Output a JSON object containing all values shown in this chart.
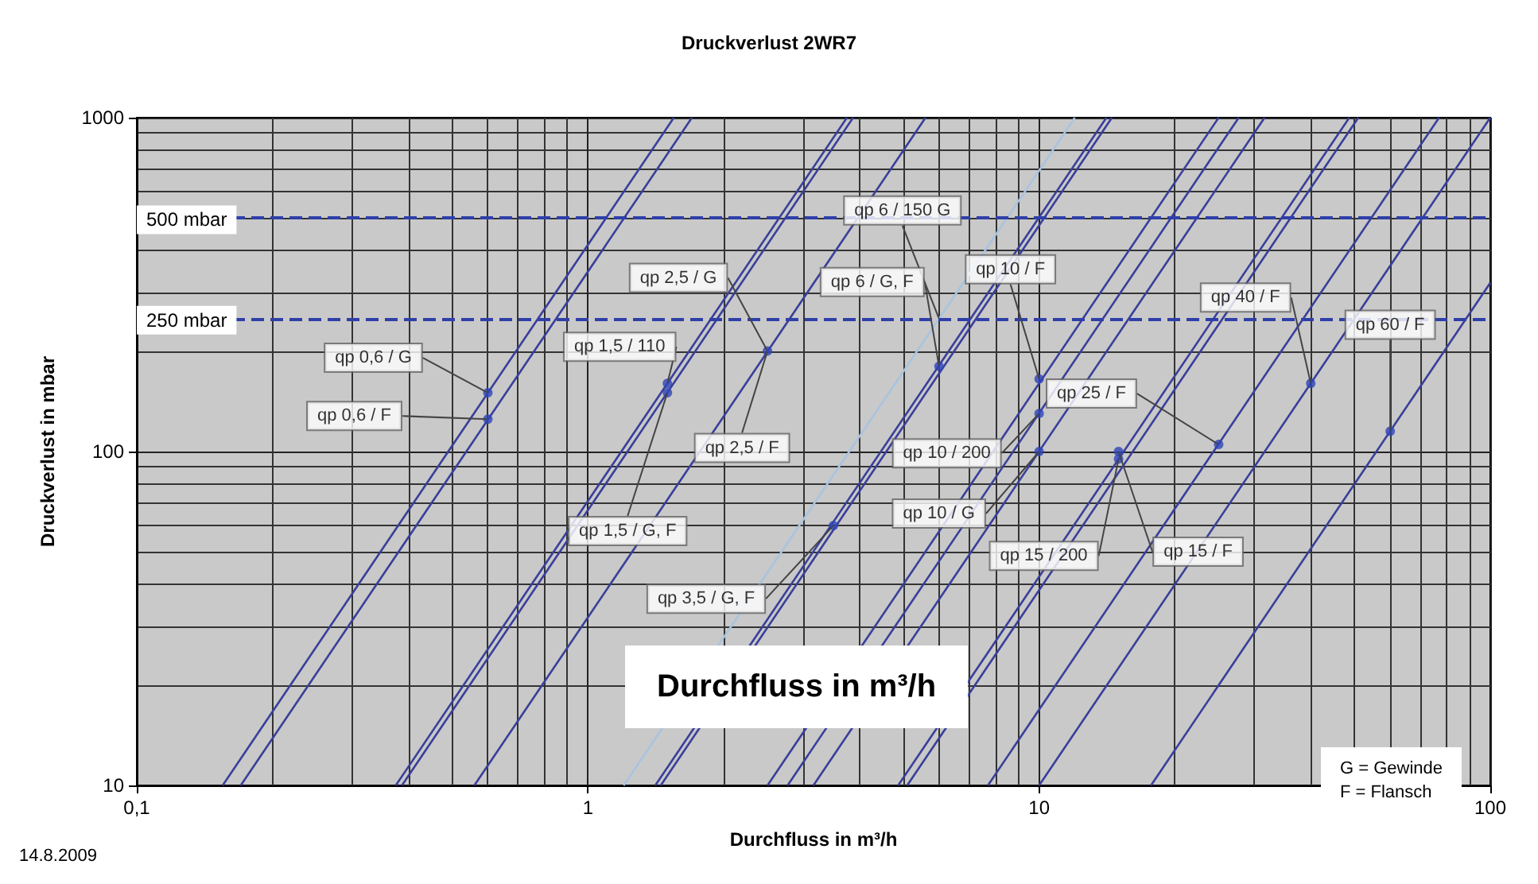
{
  "chart_data": {
    "type": "line",
    "title": "Druckverlust 2WR7",
    "xlabel": "Durchfluss in m³/h",
    "ylabel": "Druckverlust in mbar",
    "log": "xy",
    "grid": true,
    "marker": "none",
    "line_style": "solid",
    "xlim": [
      0.1,
      100
    ],
    "ylim": [
      10,
      1000
    ],
    "xticks": [
      {
        "value": 0.1,
        "label": "0,1"
      },
      1,
      10,
      100
    ],
    "yticks": [
      10,
      100,
      1000
    ],
    "series": [
      {
        "color": "#3a3f9a",
        "x": [
          0.155,
          1.55
        ],
        "values": [
          10,
          1000
        ]
      },
      {
        "color": "#3a3f9a",
        "x": [
          0.17,
          1.7
        ],
        "values": [
          10,
          1000
        ]
      },
      {
        "color": "#3a3f9a",
        "x": [
          0.375,
          3.75
        ],
        "values": [
          10,
          1000
        ]
      },
      {
        "color": "#3a3f9a",
        "x": [
          0.387,
          3.87
        ],
        "values": [
          10,
          1000
        ]
      },
      {
        "color": "#3a3f9a",
        "x": [
          0.56,
          5.6
        ],
        "values": [
          10,
          1000
        ]
      },
      {
        "color": "#a9c3e0",
        "x": [
          1.2,
          12
        ],
        "values": [
          10,
          1000
        ]
      },
      {
        "color": "#3a3f9a",
        "x": [
          1.41,
          14.1
        ],
        "values": [
          10,
          1000
        ]
      },
      {
        "color": "#3a3f9a",
        "x": [
          1.45,
          14.5
        ],
        "values": [
          10,
          1000
        ]
      },
      {
        "color": "#3a3f9a",
        "x": [
          2.5,
          25
        ],
        "values": [
          10,
          1000
        ]
      },
      {
        "color": "#3a3f9a",
        "x": [
          2.77,
          27.7
        ],
        "values": [
          10,
          1000
        ]
      },
      {
        "color": "#3a3f9a",
        "x": [
          3.16,
          31.6
        ],
        "values": [
          10,
          1000
        ]
      },
      {
        "color": "#3a3f9a",
        "x": [
          4.87,
          48.7
        ],
        "values": [
          10,
          1000
        ]
      },
      {
        "color": "#3a3f9a",
        "x": [
          5.1,
          51
        ],
        "values": [
          10,
          1000
        ]
      },
      {
        "color": "#3a3f9a",
        "x": [
          7.7,
          77
        ],
        "values": [
          10,
          1000
        ]
      },
      {
        "color": "#3a3f9a",
        "x": [
          10,
          100
        ],
        "values": [
          10,
          1000
        ]
      },
      {
        "color": "#3a3f9a",
        "x": [
          17.7,
          100
        ],
        "values": [
          10,
          320
        ]
      },
      {
        "type": "scatter",
        "marker": "circle",
        "color": "#2f45b8",
        "x": [
          0.6,
          0.6,
          1.5,
          1.5,
          2.5,
          3.5,
          6,
          10,
          10,
          10,
          15,
          15,
          25,
          40,
          60
        ],
        "values": [
          150,
          125,
          160,
          150,
          200,
          60,
          180,
          165,
          130,
          100,
          95,
          100,
          105,
          160,
          115
        ]
      }
    ],
    "ref_lines": [
      {
        "axis": "y",
        "value": 500,
        "label": "500 mbar",
        "color": "#2f3fa8",
        "line_style": "dashed"
      },
      {
        "axis": "y",
        "value": 250,
        "label": "250 mbar",
        "color": "#2f3fa8",
        "line_style": "dashed"
      }
    ],
    "annotations": [
      {
        "text": "qp 0,6 / G",
        "x": 0.6,
        "y": 150
      },
      {
        "text": "qp 0,6 / F",
        "x": 0.6,
        "y": 125
      },
      {
        "text": "qp 1,5 / 110",
        "x": 1.5,
        "y": 160
      },
      {
        "text": "qp 1,5 / G, F",
        "x": 1.5,
        "y": 150
      },
      {
        "text": "qp 2,5 / G",
        "x": 2.5,
        "y": 200
      },
      {
        "text": "qp 2,5 / F",
        "x": 2.5,
        "y": 200
      },
      {
        "text": "qp 3,5 / G, F",
        "x": 3.5,
        "y": 60
      },
      {
        "text": "qp 6 / G, F",
        "x": 6,
        "y": 180
      },
      {
        "text": "qp 6 / 150 G",
        "x": 6,
        "y": 250
      },
      {
        "text": "qp 10 / F",
        "x": 10,
        "y": 165
      },
      {
        "text": "qp 10 / 200",
        "x": 10,
        "y": 130
      },
      {
        "text": "qp 10 / G",
        "x": 10,
        "y": 100
      },
      {
        "text": "qp 15 / 200",
        "x": 15,
        "y": 95
      },
      {
        "text": "qp 15 / F",
        "x": 15,
        "y": 100
      },
      {
        "text": "qp 25 / F",
        "x": 25,
        "y": 105
      },
      {
        "text": "qp 40 / F",
        "x": 40,
        "y": 160
      },
      {
        "text": "qp 60 / F",
        "x": 60,
        "y": 115
      },
      "Durchfluss in m³/h",
      "G = Gewinde\nF = Flansch",
      "14.8.2009"
    ]
  }
}
